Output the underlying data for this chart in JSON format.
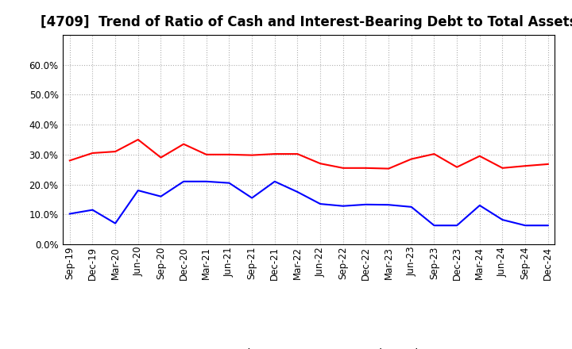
{
  "title": "[4709]  Trend of Ratio of Cash and Interest-Bearing Debt to Total Assets",
  "x_labels": [
    "Sep-19",
    "Dec-19",
    "Mar-20",
    "Jun-20",
    "Sep-20",
    "Dec-20",
    "Mar-21",
    "Jun-21",
    "Sep-21",
    "Dec-21",
    "Mar-22",
    "Jun-22",
    "Sep-22",
    "Dec-22",
    "Mar-23",
    "Jun-23",
    "Sep-23",
    "Dec-23",
    "Mar-24",
    "Jun-24",
    "Sep-24",
    "Dec-24"
  ],
  "cash": [
    0.28,
    0.305,
    0.31,
    0.35,
    0.29,
    0.335,
    0.3,
    0.3,
    0.298,
    0.302,
    0.302,
    0.27,
    0.255,
    0.255,
    0.253,
    0.285,
    0.302,
    0.258,
    0.295,
    0.255,
    0.262,
    0.268
  ],
  "ibd": [
    0.102,
    0.115,
    0.07,
    0.18,
    0.16,
    0.21,
    0.21,
    0.205,
    0.155,
    0.21,
    0.175,
    0.135,
    0.128,
    0.133,
    0.132,
    0.125,
    0.063,
    0.063,
    0.13,
    0.082,
    0.063,
    0.063
  ],
  "cash_color": "#ff0000",
  "ibd_color": "#0000ff",
  "background_color": "#ffffff",
  "grid_color": "#b0b0b0",
  "ylim": [
    0.0,
    0.7
  ],
  "yticks": [
    0.0,
    0.1,
    0.2,
    0.3,
    0.4,
    0.5,
    0.6
  ],
  "legend_cash": "Cash",
  "legend_ibd": "Interest-Bearing Debt",
  "title_fontsize": 12,
  "axis_fontsize": 8.5,
  "legend_fontsize": 10
}
